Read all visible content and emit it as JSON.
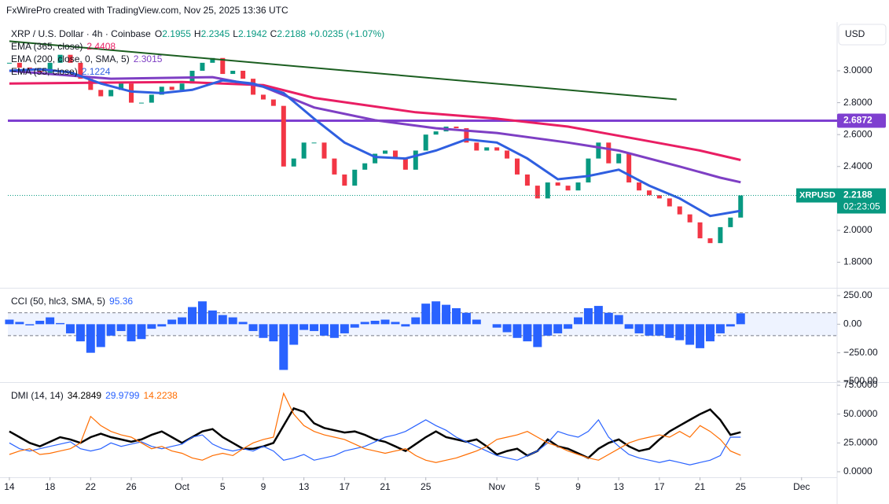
{
  "watermark": "FxWirePro created with TradingView.com, Nov 25, 2025 13:36 UTC",
  "chart_data": [
    {
      "type": "candlestick",
      "symbol_name": "XRP / U.S. Dollar · 4h · Coinbase",
      "ohlc_labels": [
        "O",
        "H",
        "L",
        "C"
      ],
      "open": 2.1955,
      "high": 2.2345,
      "low": 2.1942,
      "change": "+0.0235 (+1.07%)",
      "currency": "USD",
      "symbol": "XRPUSD",
      "countdown": "02:23:05",
      "up_color": "#089981",
      "down_color": "#f23645",
      "xlim": [
        -0.15,
        81.5
      ],
      "ylim": [
        1.645,
        3.2956
      ],
      "yticks": [
        {
          "value": 3,
          "label": "3.0000"
        },
        {
          "value": 2.8,
          "label": "2.8000"
        },
        {
          "value": 2.6,
          "label": "2.6000"
        },
        {
          "value": 2.4,
          "label": "2.4000"
        },
        {
          "value": 2,
          "label": "2.0000"
        },
        {
          "value": 1.8,
          "label": "1.8000"
        }
      ],
      "x": [
        0,
        1,
        2,
        3,
        4,
        5,
        6,
        7,
        8,
        9,
        10,
        11,
        12,
        13,
        14,
        15,
        16,
        17,
        18,
        19,
        20,
        21,
        22,
        23,
        24,
        25,
        26,
        27,
        28,
        29,
        30,
        31,
        32,
        33,
        34,
        35,
        36,
        37,
        38,
        39,
        40,
        41,
        42,
        43,
        44,
        45,
        46,
        47,
        48,
        49,
        50,
        51,
        52,
        53,
        54,
        55,
        56,
        57,
        58,
        59,
        60,
        61,
        62,
        63,
        64,
        65,
        66,
        67,
        68,
        69,
        70,
        71,
        72
      ],
      "close": [
        3.05,
        3.02,
        3.0,
        2.98,
        3.05,
        3.1,
        3.05,
        2.95,
        2.88,
        2.84,
        2.88,
        2.92,
        2.8,
        2.8,
        2.85,
        2.9,
        2.88,
        2.92,
        3.0,
        3.05,
        3.08,
        2.98,
        3.0,
        2.95,
        2.85,
        2.82,
        2.78,
        2.4,
        2.45,
        2.55,
        2.55,
        2.45,
        2.35,
        2.28,
        2.38,
        2.42,
        2.48,
        2.5,
        2.45,
        2.38,
        2.5,
        2.6,
        2.62,
        2.65,
        2.64,
        2.55,
        2.5,
        2.52,
        2.5,
        2.45,
        2.35,
        2.28,
        2.2,
        2.3,
        2.28,
        2.25,
        2.3,
        2.45,
        2.55,
        2.42,
        2.48,
        2.3,
        2.25,
        2.22,
        2.2,
        2.15,
        2.1,
        2.05,
        1.95,
        1.92,
        2.02,
        2.08,
        2.2188
      ],
      "series": [
        {
          "name": "EMA (365, close)",
          "color": "#e91e63",
          "x": [
            0,
            17,
            25,
            30,
            40,
            48,
            55,
            62,
            68,
            72
          ],
          "values": [
            2.92,
            2.93,
            2.91,
            2.83,
            2.74,
            2.7,
            2.65,
            2.57,
            2.5,
            2.4408
          ]
        },
        {
          "name": "EMA (200, close, 0, SMA, 5)",
          "color": "#7e3fc4",
          "x": [
            0,
            10,
            20,
            25,
            30,
            36,
            42,
            48,
            55,
            60,
            66,
            70,
            72
          ],
          "values": [
            3.0,
            2.95,
            2.96,
            2.9,
            2.77,
            2.69,
            2.64,
            2.61,
            2.55,
            2.5,
            2.4,
            2.33,
            2.3015
          ]
        },
        {
          "name": "EMA (55, close)",
          "color": "#2f5fe0",
          "x": [
            0,
            3,
            6,
            9,
            12,
            15,
            18,
            21,
            24,
            27,
            30,
            33,
            36,
            39,
            42,
            45,
            48,
            51,
            54,
            57,
            60,
            63,
            66,
            69,
            72
          ],
          "values": [
            3.0,
            3.01,
            2.99,
            2.92,
            2.87,
            2.86,
            2.88,
            2.94,
            2.92,
            2.86,
            2.7,
            2.55,
            2.46,
            2.45,
            2.5,
            2.57,
            2.55,
            2.45,
            2.32,
            2.34,
            2.38,
            2.28,
            2.2,
            2.09,
            2.1224
          ]
        }
      ],
      "trendline": {
        "color": "#1b5e20",
        "x": [
          0,
          65.7
        ],
        "values": [
          3.185,
          2.82
        ]
      },
      "level": {
        "value": 2.6872,
        "color": "#7e3fd0"
      }
    },
    {
      "type": "histogram",
      "title": "CCI (50, hlc3, SMA, 5)",
      "color": "#2962ff",
      "xlim": [
        -0.15,
        81.5
      ],
      "ylim": [
        -500,
        305
      ],
      "yticks": [
        {
          "value": 250,
          "label": "250.00"
        },
        {
          "value": 0,
          "label": "0.00"
        },
        {
          "value": -250,
          "label": "−250.00"
        },
        {
          "value": -500,
          "label": "−500.00"
        }
      ],
      "levels": [
        100,
        -100
      ],
      "x": [
        0,
        1,
        2,
        3,
        4,
        5,
        6,
        7,
        8,
        9,
        10,
        11,
        12,
        13,
        14,
        15,
        16,
        17,
        18,
        19,
        20,
        21,
        22,
        23,
        24,
        25,
        26,
        27,
        28,
        29,
        30,
        31,
        32,
        33,
        34,
        35,
        36,
        37,
        38,
        39,
        40,
        41,
        42,
        43,
        44,
        45,
        46,
        47,
        48,
        49,
        50,
        51,
        52,
        53,
        54,
        55,
        56,
        57,
        58,
        59,
        60,
        61,
        62,
        63,
        64,
        65,
        66,
        67,
        68,
        69,
        70,
        71,
        72
      ],
      "values": [
        40,
        20,
        -10,
        30,
        60,
        10,
        -80,
        -150,
        -250,
        -200,
        -100,
        -60,
        -150,
        -130,
        -40,
        -20,
        40,
        60,
        150,
        200,
        120,
        80,
        60,
        20,
        -60,
        -120,
        -150,
        -400,
        -180,
        -50,
        -60,
        -100,
        -120,
        -80,
        -30,
        20,
        30,
        40,
        20,
        -20,
        60,
        180,
        200,
        170,
        140,
        100,
        40,
        0,
        -30,
        -70,
        -120,
        -150,
        -200,
        -100,
        -80,
        -40,
        60,
        140,
        160,
        100,
        80,
        -40,
        -80,
        -100,
        -100,
        -120,
        -140,
        -180,
        -210,
        -150,
        -80,
        -20,
        95.36
      ]
    },
    {
      "type": "line",
      "title": "DMI (14, 14)",
      "xlim": [
        -0.15,
        81.5
      ],
      "ylim": [
        -4.8,
        76.4
      ],
      "yticks": [
        {
          "value": 75,
          "label": "75.0000"
        },
        {
          "value": 50,
          "label": "50.0000"
        },
        {
          "value": 25,
          "label": "25.0000"
        },
        {
          "value": 0,
          "label": "0.0000"
        }
      ],
      "xticks": [
        {
          "value": 0,
          "label": "14"
        },
        {
          "value": 4,
          "label": "18"
        },
        {
          "value": 8,
          "label": "22"
        },
        {
          "value": 12,
          "label": "26"
        },
        {
          "value": 17,
          "label": "Oct"
        },
        {
          "value": 21,
          "label": "5"
        },
        {
          "value": 25,
          "label": "9"
        },
        {
          "value": 29,
          "label": "13"
        },
        {
          "value": 33,
          "label": "17"
        },
        {
          "value": 37,
          "label": "21"
        },
        {
          "value": 41,
          "label": "25"
        },
        {
          "value": 48,
          "label": "Nov"
        },
        {
          "value": 52,
          "label": "5"
        },
        {
          "value": 56,
          "label": "9"
        },
        {
          "value": 60,
          "label": "13"
        },
        {
          "value": 64,
          "label": "17"
        },
        {
          "value": 68,
          "label": "21"
        },
        {
          "value": 72,
          "label": "25"
        },
        {
          "value": 78,
          "label": "Dec"
        }
      ],
      "x": [
        0,
        1,
        2,
        3,
        4,
        5,
        6,
        7,
        8,
        9,
        10,
        11,
        12,
        13,
        14,
        15,
        16,
        17,
        18,
        19,
        20,
        21,
        22,
        23,
        24,
        25,
        26,
        27,
        28,
        29,
        30,
        31,
        32,
        33,
        34,
        35,
        36,
        37,
        38,
        39,
        40,
        41,
        42,
        43,
        44,
        45,
        46,
        47,
        48,
        49,
        50,
        51,
        52,
        53,
        54,
        55,
        56,
        57,
        58,
        59,
        60,
        61,
        62,
        63,
        64,
        65,
        66,
        67,
        68,
        69,
        70,
        71,
        72
      ],
      "series": [
        {
          "color": "#000000",
          "values": [
            35,
            30,
            25,
            22,
            26,
            30,
            28,
            25,
            30,
            33,
            30,
            28,
            26,
            28,
            32,
            35,
            30,
            25,
            30,
            35,
            37,
            30,
            25,
            20,
            20,
            22,
            25,
            40,
            55,
            52,
            42,
            38,
            36,
            34,
            35,
            32,
            28,
            26,
            22,
            18,
            24,
            30,
            35,
            30,
            28,
            26,
            28,
            22,
            15,
            18,
            20,
            14,
            18,
            28,
            22,
            20,
            16,
            12,
            20,
            25,
            28,
            22,
            18,
            20,
            28,
            35,
            40,
            45,
            50,
            54,
            45,
            32,
            34.2849
          ]
        },
        {
          "color": "#2962ff",
          "values": [
            25,
            20,
            18,
            20,
            22,
            24,
            26,
            20,
            18,
            20,
            25,
            22,
            24,
            26,
            22,
            20,
            22,
            24,
            30,
            32,
            24,
            20,
            18,
            20,
            18,
            22,
            18,
            10,
            12,
            15,
            10,
            12,
            14,
            18,
            20,
            22,
            26,
            30,
            32,
            35,
            40,
            45,
            40,
            36,
            30,
            26,
            22,
            18,
            14,
            12,
            10,
            14,
            18,
            25,
            35,
            32,
            30,
            35,
            45,
            30,
            22,
            15,
            12,
            10,
            8,
            10,
            8,
            6,
            8,
            10,
            14,
            30,
            29.9799
          ]
        },
        {
          "color": "#ff6d00",
          "values": [
            15,
            18,
            20,
            15,
            16,
            18,
            20,
            25,
            48,
            40,
            35,
            32,
            30,
            25,
            20,
            22,
            18,
            16,
            12,
            10,
            14,
            16,
            14,
            20,
            25,
            28,
            30,
            68,
            50,
            40,
            35,
            32,
            30,
            28,
            24,
            20,
            18,
            16,
            18,
            20,
            14,
            10,
            8,
            10,
            12,
            15,
            18,
            22,
            28,
            30,
            32,
            35,
            30,
            25,
            22,
            18,
            15,
            12,
            10,
            15,
            20,
            25,
            28,
            30,
            32,
            30,
            35,
            30,
            40,
            35,
            28,
            18,
            14.2238
          ]
        }
      ]
    }
  ]
}
